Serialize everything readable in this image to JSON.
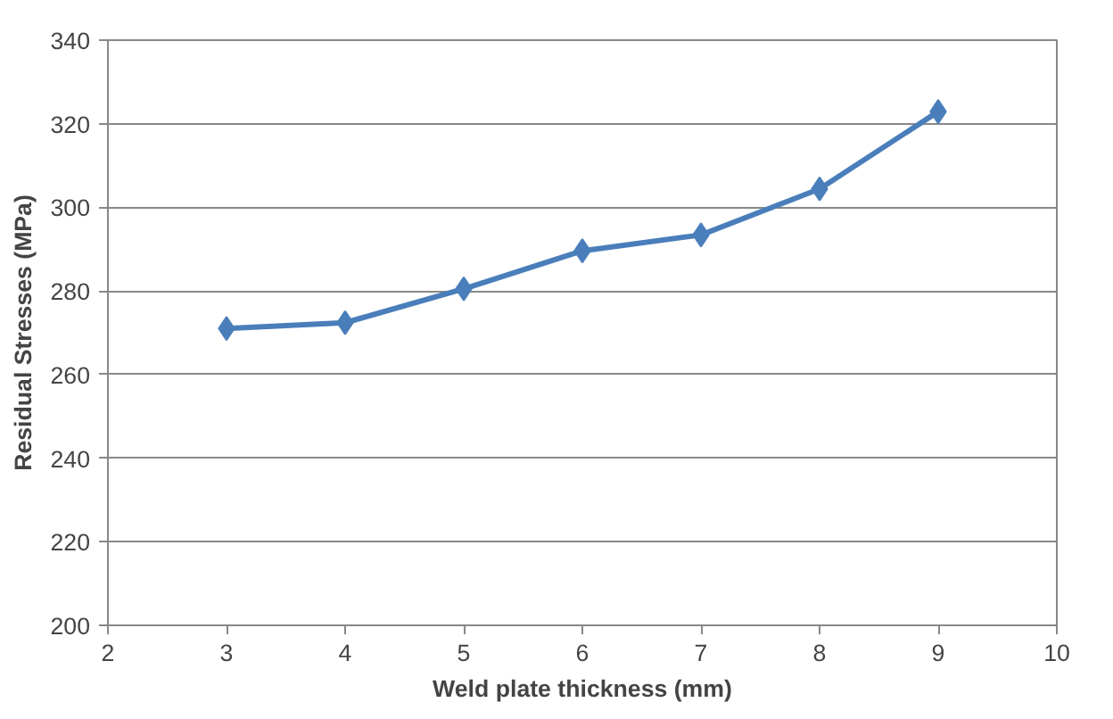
{
  "chart_data": {
    "type": "line",
    "xlabel": "Weld plate thickness (mm)",
    "ylabel": "Residual Stresses (MPa)",
    "x": [
      3,
      4,
      5,
      6,
      7,
      8,
      9
    ],
    "series": [
      {
        "color": "#4a7ebb",
        "values": [
          271,
          272.4,
          280.5,
          289.6,
          293.4,
          304.4,
          322.9
        ]
      }
    ],
    "xlim": [
      2,
      10
    ],
    "xticks": [
      2,
      3,
      4,
      5,
      6,
      7,
      8,
      9,
      10
    ],
    "ylim": [
      200,
      340
    ],
    "yticks": [
      200,
      220,
      240,
      260,
      280,
      300,
      320,
      340
    ],
    "grid": "y",
    "marker": "diamond",
    "line_style": "solid"
  }
}
